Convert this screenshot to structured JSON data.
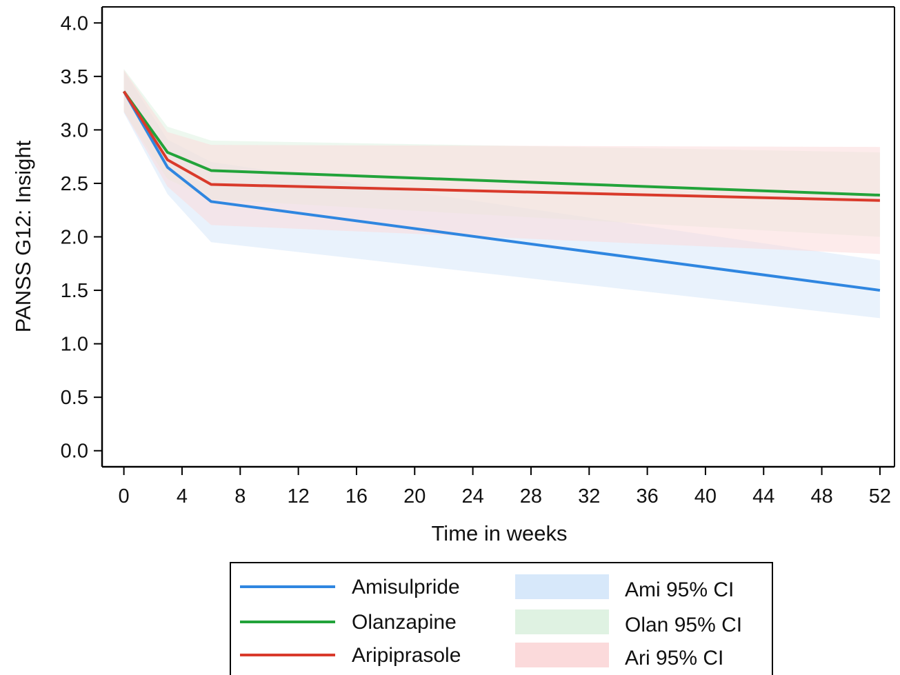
{
  "chart_data": {
    "type": "line",
    "title": "",
    "xlabel": "Time in weeks",
    "ylabel": "PANSS G12: Insight",
    "xlim": [
      -1.5,
      53
    ],
    "ylim": [
      -0.15,
      4.15
    ],
    "xticks": [
      "0",
      "4",
      "8",
      "12",
      "16",
      "20",
      "24",
      "28",
      "32",
      "36",
      "40",
      "44",
      "48",
      "52"
    ],
    "yticks": [
      "0.0",
      "0.5",
      "1.0",
      "1.5",
      "2.0",
      "2.5",
      "3.0",
      "3.5",
      "4.0"
    ],
    "x": [
      0,
      3,
      6,
      52
    ],
    "series": [
      {
        "name": "Amisulpride",
        "color": "#2f86e0",
        "values": [
          3.36,
          2.65,
          2.33,
          1.5
        ],
        "ci_name": "Ami 95% CI",
        "ci_color": "#d7e8fa",
        "ci_lower": [
          3.16,
          2.4,
          1.95,
          1.24
        ],
        "ci_upper": [
          3.55,
          2.91,
          2.7,
          1.78
        ]
      },
      {
        "name": "Olanzapine",
        "color": "#22a33a",
        "values": [
          3.36,
          2.79,
          2.62,
          2.39
        ],
        "ci_name": "Olan 95% CI",
        "ci_color": "#dff2e2",
        "ci_lower": [
          3.17,
          2.54,
          2.35,
          2.0
        ],
        "ci_upper": [
          3.57,
          3.03,
          2.9,
          2.79
        ]
      },
      {
        "name": "Aripiprasole",
        "color": "#d93a2b",
        "values": [
          3.36,
          2.72,
          2.49,
          2.34
        ],
        "ci_name": "Ari 95% CI",
        "ci_color": "#fbdadb",
        "ci_lower": [
          3.17,
          2.47,
          2.11,
          1.84
        ],
        "ci_upper": [
          3.56,
          2.98,
          2.86,
          2.84
        ]
      }
    ],
    "grid": false,
    "legend": "bottom"
  }
}
